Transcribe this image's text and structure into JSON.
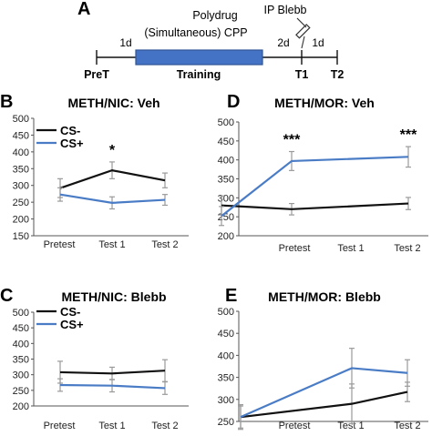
{
  "schematic": {
    "panel_letter": "A",
    "drug_label_line1": "Polydrug",
    "drug_label_line2": "(Simultaneous) CPP",
    "injection_label": "IP Blebb",
    "interval_1": "1d",
    "interval_2": "2d",
    "interval_3": "1d",
    "pretest_label": "PreT",
    "training_label": "Training",
    "t1_label": "T1",
    "t2_label": "T2",
    "bar_color": "#4472c4"
  },
  "colors": {
    "cs_minus": "#111111",
    "cs_plus": "#4a7cc6",
    "error_bar": "#9a9a9a"
  },
  "chart_data": [
    {
      "panel": "B",
      "type": "line",
      "title": "METH/NIC: Veh",
      "categories": [
        "Pretest",
        "Test 1",
        "Test 2"
      ],
      "yticks": [
        150,
        200,
        250,
        300,
        350,
        400,
        450,
        500
      ],
      "ylim": [
        150,
        500
      ],
      "legend": [
        "CS-",
        "CS+"
      ],
      "legend_position": "top-left",
      "series": [
        {
          "name": "CS-",
          "values": [
            292,
            345,
            315
          ],
          "errors": [
            28,
            25,
            22
          ]
        },
        {
          "name": "CS+",
          "values": [
            273,
            248,
            257
          ],
          "errors": [
            20,
            18,
            16
          ]
        }
      ],
      "annotations": [
        {
          "category": "Test 1",
          "text": "*"
        }
      ]
    },
    {
      "panel": "D",
      "type": "line",
      "title": "METH/MOR: Veh",
      "categories": [
        "Pretest",
        "Test 1",
        "Test 2"
      ],
      "yticks": [
        200,
        250,
        300,
        350,
        400,
        450,
        500
      ],
      "ylim": [
        200,
        500
      ],
      "series": [
        {
          "name": "CS-",
          "values": [
            280,
            270,
            285
          ],
          "errors": [
            25,
            15,
            16
          ]
        },
        {
          "name": "CS+",
          "values": [
            252,
            397,
            408
          ],
          "errors": [
            25,
            25,
            27
          ]
        }
      ],
      "annotations": [
        {
          "category": "Test 1",
          "text": "***"
        },
        {
          "category": "Test 2",
          "text": "***"
        }
      ]
    },
    {
      "panel": "C",
      "type": "line",
      "title": "METH/NIC: Blebb",
      "categories": [
        "Pretest",
        "Test 1",
        "Test 2"
      ],
      "yticks": [
        200,
        250,
        300,
        350,
        400,
        450,
        500
      ],
      "ylim": [
        200,
        500
      ],
      "legend": [
        "CS-",
        "CS+"
      ],
      "legend_position": "top-left",
      "series": [
        {
          "name": "CS-",
          "values": [
            308,
            304,
            313
          ],
          "errors": [
            35,
            20,
            35
          ]
        },
        {
          "name": "CS+",
          "values": [
            267,
            265,
            257
          ],
          "errors": [
            20,
            20,
            20
          ]
        }
      ]
    },
    {
      "panel": "E",
      "type": "line",
      "title": "METH/MOR: Blebb",
      "categories": [
        "Pretest",
        "Test 1",
        "Test 2"
      ],
      "yticks": [
        250,
        300,
        350,
        400,
        450,
        500
      ],
      "ylim": [
        250,
        500
      ],
      "series": [
        {
          "name": "CS-",
          "values": [
            260,
            290,
            317
          ],
          "errors": [
            28,
            45,
            22
          ]
        },
        {
          "name": "CS+",
          "values": [
            260,
            371,
            360
          ],
          "errors": [
            25,
            45,
            30
          ]
        }
      ]
    }
  ]
}
